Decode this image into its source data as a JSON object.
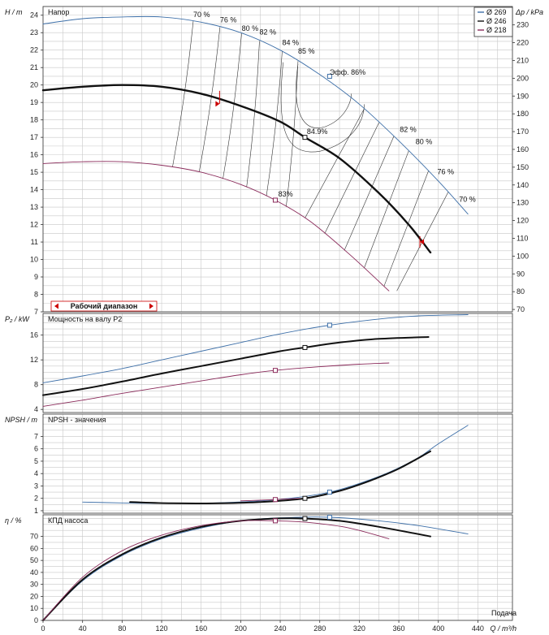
{
  "chart_data": [
    {
      "type": "line",
      "panel": "head",
      "title": "Напор",
      "ylabel": "H / m",
      "ylabel_right": "Δp / kPa",
      "ylim": [
        7,
        24.5
      ],
      "y_ticks": [
        7,
        8,
        9,
        10,
        11,
        12,
        13,
        14,
        15,
        16,
        17,
        18,
        19,
        20,
        21,
        22,
        23,
        24
      ],
      "y_right_ticks": [
        70,
        80,
        90,
        100,
        110,
        120,
        130,
        140,
        150,
        160,
        170,
        180,
        190,
        200,
        210,
        220,
        230
      ],
      "series": [
        {
          "name": "Ø 269",
          "color": "#3d6fa8",
          "width": 0.9,
          "x": [
            0,
            40,
            80,
            120,
            160,
            200,
            240,
            280,
            320,
            360,
            400,
            430
          ],
          "y": [
            23.5,
            23.8,
            23.9,
            23.9,
            23.6,
            23.0,
            22.0,
            20.6,
            18.9,
            16.8,
            14.5,
            12.6
          ]
        },
        {
          "name": "Ø 246",
          "color": "#111111",
          "width": 2.4,
          "x": [
            0,
            40,
            80,
            120,
            160,
            200,
            240,
            265,
            300,
            340,
            370,
            392
          ],
          "y": [
            19.7,
            19.9,
            20.0,
            19.9,
            19.5,
            18.8,
            17.9,
            17.0,
            15.8,
            13.8,
            12.0,
            10.4
          ]
        },
        {
          "name": "Ø 218",
          "color": "#8a2a5a",
          "width": 0.9,
          "x": [
            0,
            40,
            80,
            120,
            160,
            200,
            235,
            270,
            310,
            350
          ],
          "y": [
            15.5,
            15.6,
            15.6,
            15.4,
            15.0,
            14.3,
            13.4,
            12.2,
            10.3,
            8.2
          ]
        }
      ],
      "points": [
        {
          "x": 290,
          "y": 20.5,
          "color": "#3d6fa8"
        },
        {
          "x": 265,
          "y": 17.0,
          "color": "#111111"
        },
        {
          "x": 235,
          "y": 13.4,
          "color": "#8a2a5a"
        }
      ],
      "efficiency_labels": [
        {
          "text": "70 %",
          "x": 152,
          "y": 23.9
        },
        {
          "text": "76 %",
          "x": 179,
          "y": 23.6
        },
        {
          "text": "80 %",
          "x": 201,
          "y": 23.1
        },
        {
          "text": "82 %",
          "x": 219,
          "y": 22.9
        },
        {
          "text": "84 %",
          "x": 242,
          "y": 22.3
        },
        {
          "text": "85 %",
          "x": 258,
          "y": 21.8
        },
        {
          "text": "Эфф. 86%",
          "x": 290,
          "y": 20.6
        },
        {
          "text": "84.9%",
          "x": 267,
          "y": 17.2
        },
        {
          "text": "83%",
          "x": 238,
          "y": 13.6
        },
        {
          "text": "82 %",
          "x": 361,
          "y": 17.3
        },
        {
          "text": "80 %",
          "x": 377,
          "y": 16.6
        },
        {
          "text": "76 %",
          "x": 399,
          "y": 14.9
        },
        {
          "text": "70 %",
          "x": 421,
          "y": 13.3
        }
      ],
      "operating_range": {
        "label": "Рабочий диапазон",
        "min": 177,
        "max": 383
      }
    },
    {
      "type": "line",
      "panel": "power",
      "title": "Мощность на валу P2",
      "ylabel": "P₂ / kW",
      "ylim": [
        3.5,
        19.5
      ],
      "y_ticks": [
        4,
        8,
        12,
        16
      ],
      "series": [
        {
          "name": "Ø 269",
          "color": "#3d6fa8",
          "width": 0.9,
          "x": [
            0,
            40,
            80,
            120,
            160,
            200,
            240,
            290,
            340,
            380,
            430
          ],
          "y": [
            8.3,
            9.4,
            10.6,
            12.0,
            13.4,
            14.8,
            16.2,
            17.6,
            18.6,
            19.1,
            19.3
          ]
        },
        {
          "name": "Ø 246",
          "color": "#111111",
          "width": 2.0,
          "x": [
            0,
            40,
            80,
            120,
            160,
            200,
            240,
            265,
            300,
            340,
            390
          ],
          "y": [
            6.3,
            7.3,
            8.5,
            9.8,
            11.0,
            12.2,
            13.4,
            14.0,
            14.8,
            15.4,
            15.7
          ]
        },
        {
          "name": "Ø 218",
          "color": "#8a2a5a",
          "width": 0.9,
          "x": [
            0,
            40,
            80,
            120,
            160,
            200,
            235,
            280,
            320,
            350
          ],
          "y": [
            4.5,
            5.5,
            6.6,
            7.6,
            8.6,
            9.6,
            10.3,
            10.9,
            11.3,
            11.5
          ]
        }
      ],
      "points": [
        {
          "x": 290,
          "y": 17.6,
          "color": "#3d6fa8"
        },
        {
          "x": 265,
          "y": 14.0,
          "color": "#111111"
        },
        {
          "x": 235,
          "y": 10.3,
          "color": "#8a2a5a"
        }
      ]
    },
    {
      "type": "line",
      "panel": "npsh",
      "title": "NPSH - значения",
      "ylabel": "NPSH / m",
      "ylim": [
        0.8,
        8.8
      ],
      "y_ticks": [
        1,
        2,
        3,
        4,
        5,
        6,
        7
      ],
      "series": [
        {
          "name": "Ø 269",
          "color": "#3d6fa8",
          "width": 0.9,
          "x": [
            40,
            100,
            160,
            220,
            260,
            290,
            320,
            350,
            380,
            400,
            430
          ],
          "y": [
            1.7,
            1.6,
            1.6,
            1.8,
            2.1,
            2.5,
            3.2,
            4.1,
            5.3,
            6.4,
            7.9
          ]
        },
        {
          "name": "Ø 246",
          "color": "#111111",
          "width": 2.0,
          "x": [
            88,
            130,
            180,
            220,
            265,
            300,
            330,
            360,
            392
          ],
          "y": [
            1.7,
            1.6,
            1.6,
            1.7,
            2.0,
            2.6,
            3.4,
            4.4,
            5.8
          ]
        },
        {
          "name": "Ø 218",
          "color": "#8a2a5a",
          "width": 0.9,
          "x": [
            200,
            235,
            260
          ],
          "y": [
            1.8,
            1.9,
            2.0
          ]
        }
      ],
      "points": [
        {
          "x": 290,
          "y": 2.5,
          "color": "#3d6fa8"
        },
        {
          "x": 265,
          "y": 2.0,
          "color": "#111111"
        },
        {
          "x": 235,
          "y": 1.9,
          "color": "#8a2a5a"
        }
      ]
    },
    {
      "type": "line",
      "panel": "efficiency",
      "title": "КПД насоса",
      "ylabel": "η / %",
      "xlabel": "Q / m³/h",
      "x_caption": "Подача",
      "ylim": [
        0,
        88
      ],
      "xlim": [
        0,
        475
      ],
      "x_ticks": [
        0,
        40,
        80,
        120,
        160,
        200,
        240,
        280,
        320,
        360,
        400,
        440
      ],
      "y_ticks": [
        0,
        10,
        20,
        30,
        40,
        50,
        60,
        70
      ],
      "series": [
        {
          "name": "Ø 269",
          "color": "#3d6fa8",
          "width": 0.9,
          "x": [
            0,
            40,
            80,
            120,
            160,
            200,
            240,
            290,
            340,
            380,
            430
          ],
          "y": [
            0,
            33,
            54,
            68,
            77,
            83,
            85.5,
            86,
            83,
            79,
            72
          ]
        },
        {
          "name": "Ø 246",
          "color": "#111111",
          "width": 2.0,
          "x": [
            0,
            40,
            80,
            120,
            160,
            200,
            240,
            265,
            300,
            340,
            392
          ],
          "y": [
            0,
            34,
            55,
            69,
            78,
            83,
            85,
            84.9,
            83,
            78,
            70
          ]
        },
        {
          "name": "Ø 218",
          "color": "#8a2a5a",
          "width": 0.9,
          "x": [
            0,
            40,
            80,
            120,
            160,
            200,
            235,
            270,
            310,
            350
          ],
          "y": [
            0,
            36,
            58,
            71,
            79,
            83,
            83,
            81.5,
            77,
            68
          ]
        }
      ],
      "points": [
        {
          "x": 290,
          "y": 86,
          "color": "#3d6fa8"
        },
        {
          "x": 265,
          "y": 84.9,
          "color": "#111111"
        },
        {
          "x": 235,
          "y": 83,
          "color": "#8a2a5a"
        }
      ]
    }
  ],
  "legend": [
    {
      "label": "Ø 269",
      "color": "#3d6fa8"
    },
    {
      "label": "Ø 246",
      "color": "#111111"
    },
    {
      "label": "Ø 218",
      "color": "#8a2a5a"
    }
  ]
}
